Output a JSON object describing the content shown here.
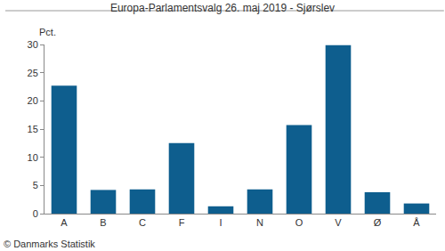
{
  "chart_data": {
    "type": "bar",
    "title": "Europa-Parlamentsvalg 26. maj 2019 - Sjørslev",
    "ylabel": "Pct.",
    "annotations": [
      "© Danmarks Statistik"
    ],
    "categories": [
      "A",
      "B",
      "C",
      "F",
      "I",
      "N",
      "O",
      "V",
      "Ø",
      "Å"
    ],
    "values": [
      22.7,
      4.2,
      4.3,
      12.5,
      1.3,
      4.3,
      15.7,
      29.9,
      3.8,
      1.8
    ],
    "color": "#0e5e8e",
    "ylim": [
      0,
      30
    ],
    "yticks": [
      0,
      5,
      10,
      15,
      20,
      25,
      30
    ],
    "grid": false
  }
}
